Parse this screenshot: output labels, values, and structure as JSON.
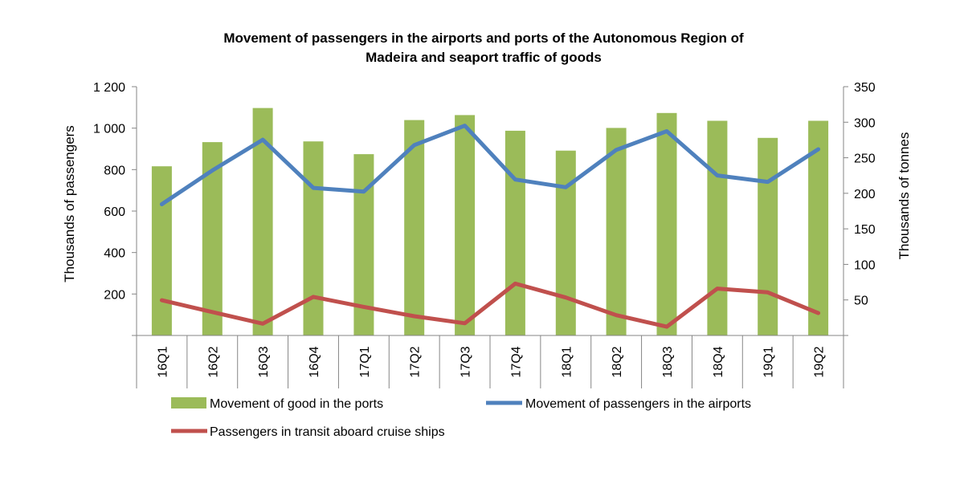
{
  "chart_data": {
    "type": "bar",
    "title_lines": [
      "Movement of passengers in the airports and ports of the Autonomous Region of",
      "Madeira and seaport traffic of goods"
    ],
    "categories": [
      "16Q1",
      "16Q2",
      "16Q3",
      "16Q4",
      "17Q1",
      "17Q2",
      "17Q3",
      "17Q4",
      "18Q1",
      "18Q2",
      "18Q3",
      "18Q4",
      "19Q1",
      "19Q2"
    ],
    "ylabel": "Thousands of passengers",
    "y2label": "Thousands of tonnes",
    "ylim": [
      0,
      1200
    ],
    "y2lim": [
      0,
      350
    ],
    "y_ticks": [
      "200",
      "400",
      "600",
      "800",
      "1 000",
      "1 200"
    ],
    "y_tick_values": [
      200,
      400,
      600,
      800,
      1000,
      1200
    ],
    "y2_ticks": [
      "50",
      "100",
      "150",
      "200",
      "250",
      "300",
      "350"
    ],
    "y2_tick_values": [
      50,
      100,
      150,
      200,
      250,
      300,
      350
    ],
    "grid": false,
    "legend_position": "bottom",
    "series": [
      {
        "name": "Movement of good in the ports",
        "kind": "bar",
        "axis": "right",
        "color": "#9bbb59",
        "values": [
          238,
          272,
          320,
          273,
          255,
          303,
          310,
          288,
          260,
          292,
          313,
          302,
          278,
          302
        ]
      },
      {
        "name": "Movement of passengers in the airports",
        "kind": "line",
        "axis": "left",
        "color": "#4f81bd",
        "values": [
          633,
          796,
          944,
          712,
          694,
          918,
          1012,
          752,
          715,
          895,
          985,
          772,
          741,
          898
        ]
      },
      {
        "name": "Passengers in transit aboard cruise ships",
        "kind": "line",
        "axis": "left",
        "color": "#c0504d",
        "values": [
          170,
          113,
          57,
          186,
          138,
          93,
          59,
          250,
          183,
          98,
          42,
          226,
          208,
          108
        ]
      }
    ]
  }
}
